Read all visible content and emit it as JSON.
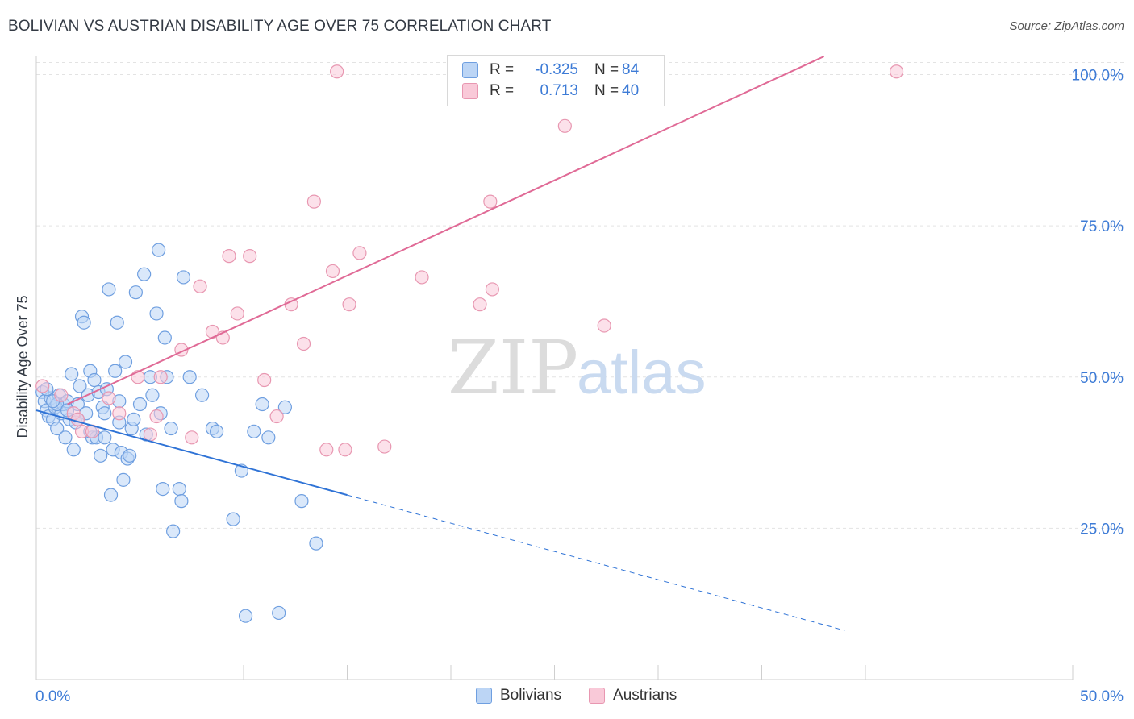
{
  "title": "BOLIVIAN VS AUSTRIAN DISABILITY AGE OVER 75 CORRELATION CHART",
  "source": "Source: ZipAtlas.com",
  "watermark": {
    "zip": "ZIP",
    "atlas": "atlas"
  },
  "legend_box": {
    "rows": [
      {
        "r_label": "R =",
        "r_value": "-0.325",
        "n_label": "N =",
        "n_value": "84",
        "fill": "#bcd5f5",
        "stroke": "#6f9fe0"
      },
      {
        "r_label": "R =",
        "r_value": "0.713",
        "n_label": "N =",
        "n_value": "40",
        "fill": "#f9c9d8",
        "stroke": "#e897b1"
      }
    ]
  },
  "bottom_legend": [
    {
      "label": "Bolivians",
      "fill": "#bcd5f5",
      "stroke": "#6f9fe0"
    },
    {
      "label": "Austrians",
      "fill": "#f9c9d8",
      "stroke": "#e897b1"
    }
  ],
  "chart_data": {
    "type": "scatter",
    "title": "BOLIVIAN VS AUSTRIAN DISABILITY AGE OVER 75 CORRELATION CHART",
    "xlabel": "",
    "ylabel": "Disability Age Over 75",
    "xlim": [
      0,
      50
    ],
    "ylim": [
      0,
      103
    ],
    "x_tick_labels": [
      "0.0%",
      "50.0%"
    ],
    "y_ticks": [
      25,
      50,
      75,
      100
    ],
    "y_tick_labels": [
      "25.0%",
      "50.0%",
      "75.0%",
      "100.0%"
    ],
    "grid": true,
    "legend_placement": "top-center",
    "series": [
      {
        "name": "Bolivians",
        "color": "#6f9fe0",
        "fill": "#bcd5f5",
        "trend": {
          "x0": 0,
          "y0": 44.5,
          "x1": 15,
          "y1": 30.5,
          "dashed_to_x": 39
        },
        "points": [
          [
            0.3,
            47.5
          ],
          [
            0.4,
            46
          ],
          [
            0.5,
            44.5
          ],
          [
            0.6,
            43.5
          ],
          [
            0.7,
            46.5
          ],
          [
            0.8,
            43
          ],
          [
            0.9,
            45
          ],
          [
            1.0,
            41.5
          ],
          [
            1.1,
            47
          ],
          [
            1.2,
            44
          ],
          [
            1.3,
            45.5
          ],
          [
            1.4,
            40
          ],
          [
            1.5,
            46
          ],
          [
            1.6,
            43
          ],
          [
            1.7,
            50.5
          ],
          [
            1.8,
            38
          ],
          [
            1.9,
            42.5
          ],
          [
            2.0,
            45.5
          ],
          [
            2.1,
            48.5
          ],
          [
            2.2,
            60
          ],
          [
            2.3,
            59
          ],
          [
            2.4,
            44
          ],
          [
            2.5,
            47
          ],
          [
            2.6,
            51
          ],
          [
            2.7,
            40
          ],
          [
            2.8,
            49.5
          ],
          [
            2.9,
            40
          ],
          [
            3.0,
            47.5
          ],
          [
            3.1,
            37
          ],
          [
            3.2,
            45
          ],
          [
            3.3,
            44
          ],
          [
            3.4,
            48
          ],
          [
            3.5,
            64.5
          ],
          [
            3.6,
            30.5
          ],
          [
            3.7,
            38
          ],
          [
            3.8,
            51
          ],
          [
            3.9,
            59
          ],
          [
            4.0,
            42.5
          ],
          [
            4.1,
            37.5
          ],
          [
            4.2,
            33
          ],
          [
            4.3,
            52.5
          ],
          [
            4.4,
            36.5
          ],
          [
            4.5,
            37
          ],
          [
            4.6,
            41.5
          ],
          [
            4.7,
            43
          ],
          [
            4.8,
            64
          ],
          [
            5.0,
            45.5
          ],
          [
            5.2,
            67
          ],
          [
            5.3,
            40.5
          ],
          [
            5.5,
            50
          ],
          [
            5.6,
            47
          ],
          [
            5.8,
            60.5
          ],
          [
            5.9,
            71
          ],
          [
            6.1,
            31.5
          ],
          [
            6.2,
            56.5
          ],
          [
            6.3,
            50
          ],
          [
            6.5,
            41.5
          ],
          [
            6.6,
            24.5
          ],
          [
            6.9,
            31.5
          ],
          [
            7.0,
            29.5
          ],
          [
            7.1,
            66.5
          ],
          [
            7.4,
            50
          ],
          [
            8.0,
            47
          ],
          [
            8.5,
            41.5
          ],
          [
            8.7,
            41
          ],
          [
            9.5,
            26.5
          ],
          [
            9.9,
            34.5
          ],
          [
            10.1,
            10.5
          ],
          [
            10.5,
            41
          ],
          [
            10.9,
            45.5
          ],
          [
            11.2,
            40
          ],
          [
            12.0,
            45
          ],
          [
            11.7,
            11
          ],
          [
            12.8,
            29.5
          ],
          [
            13.5,
            22.5
          ],
          [
            1.0,
            45.5
          ],
          [
            2.6,
            41
          ],
          [
            3.3,
            40
          ],
          [
            0.5,
            48
          ],
          [
            1.5,
            44.5
          ],
          [
            4.0,
            46
          ],
          [
            2.0,
            43
          ],
          [
            6.0,
            44
          ],
          [
            0.8,
            46
          ]
        ]
      },
      {
        "name": "Austrians",
        "color": "#e897b1",
        "fill": "#f9c9d8",
        "trend": {
          "x0": 1.5,
          "y0": 45.5,
          "x1": 38,
          "y1": 103
        },
        "points": [
          [
            0.3,
            48.5
          ],
          [
            1.2,
            47
          ],
          [
            1.8,
            44
          ],
          [
            2.2,
            41
          ],
          [
            2.7,
            41
          ],
          [
            3.5,
            46.5
          ],
          [
            4.0,
            44
          ],
          [
            4.9,
            50
          ],
          [
            5.5,
            40.5
          ],
          [
            5.8,
            43.5
          ],
          [
            6.0,
            50
          ],
          [
            7.0,
            54.5
          ],
          [
            7.9,
            65
          ],
          [
            8.5,
            57.5
          ],
          [
            9.0,
            56.5
          ],
          [
            9.3,
            70
          ],
          [
            9.7,
            60.5
          ],
          [
            10.3,
            70
          ],
          [
            11.0,
            49.5
          ],
          [
            11.6,
            43.5
          ],
          [
            12.3,
            62
          ],
          [
            12.9,
            55.5
          ],
          [
            13.4,
            79
          ],
          [
            14.0,
            38
          ],
          [
            14.3,
            67.5
          ],
          [
            14.9,
            38
          ],
          [
            15.1,
            62
          ],
          [
            15.6,
            70.5
          ],
          [
            14.5,
            100.5
          ],
          [
            16.8,
            38.5
          ],
          [
            18.6,
            66.5
          ],
          [
            21.4,
            62
          ],
          [
            22.0,
            64.5
          ],
          [
            21.9,
            79
          ],
          [
            25.5,
            91.5
          ],
          [
            27.4,
            58.5
          ],
          [
            29.7,
            100.5
          ],
          [
            41.5,
            100.5
          ],
          [
            2.0,
            43
          ],
          [
            7.5,
            40
          ]
        ]
      }
    ]
  }
}
